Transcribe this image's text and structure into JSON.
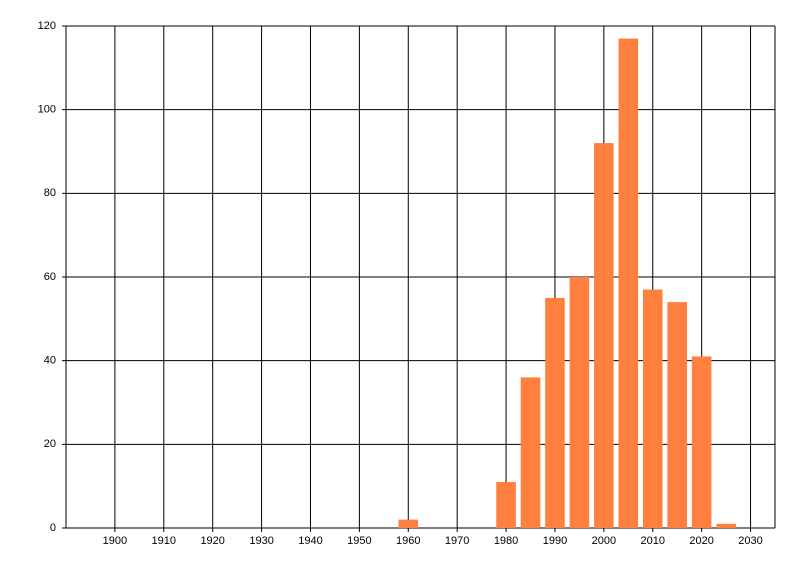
{
  "chart_data": {
    "type": "bar",
    "x": [
      1960,
      1980,
      1985,
      1990,
      1995,
      2000,
      2005,
      2010,
      2015,
      2020,
      2025
    ],
    "values": [
      2,
      11,
      36,
      55,
      60,
      92,
      117,
      57,
      54,
      41,
      1
    ],
    "color": "#ff7f3f",
    "xlim": [
      1890,
      2035
    ],
    "xticks": [
      1900,
      1910,
      1920,
      1930,
      1940,
      1950,
      1960,
      1970,
      1980,
      1990,
      2000,
      2010,
      2020,
      2030
    ],
    "ylim": [
      0,
      120
    ],
    "yticks": [
      0,
      20,
      40,
      60,
      80,
      100,
      120
    ],
    "grid": true
  }
}
